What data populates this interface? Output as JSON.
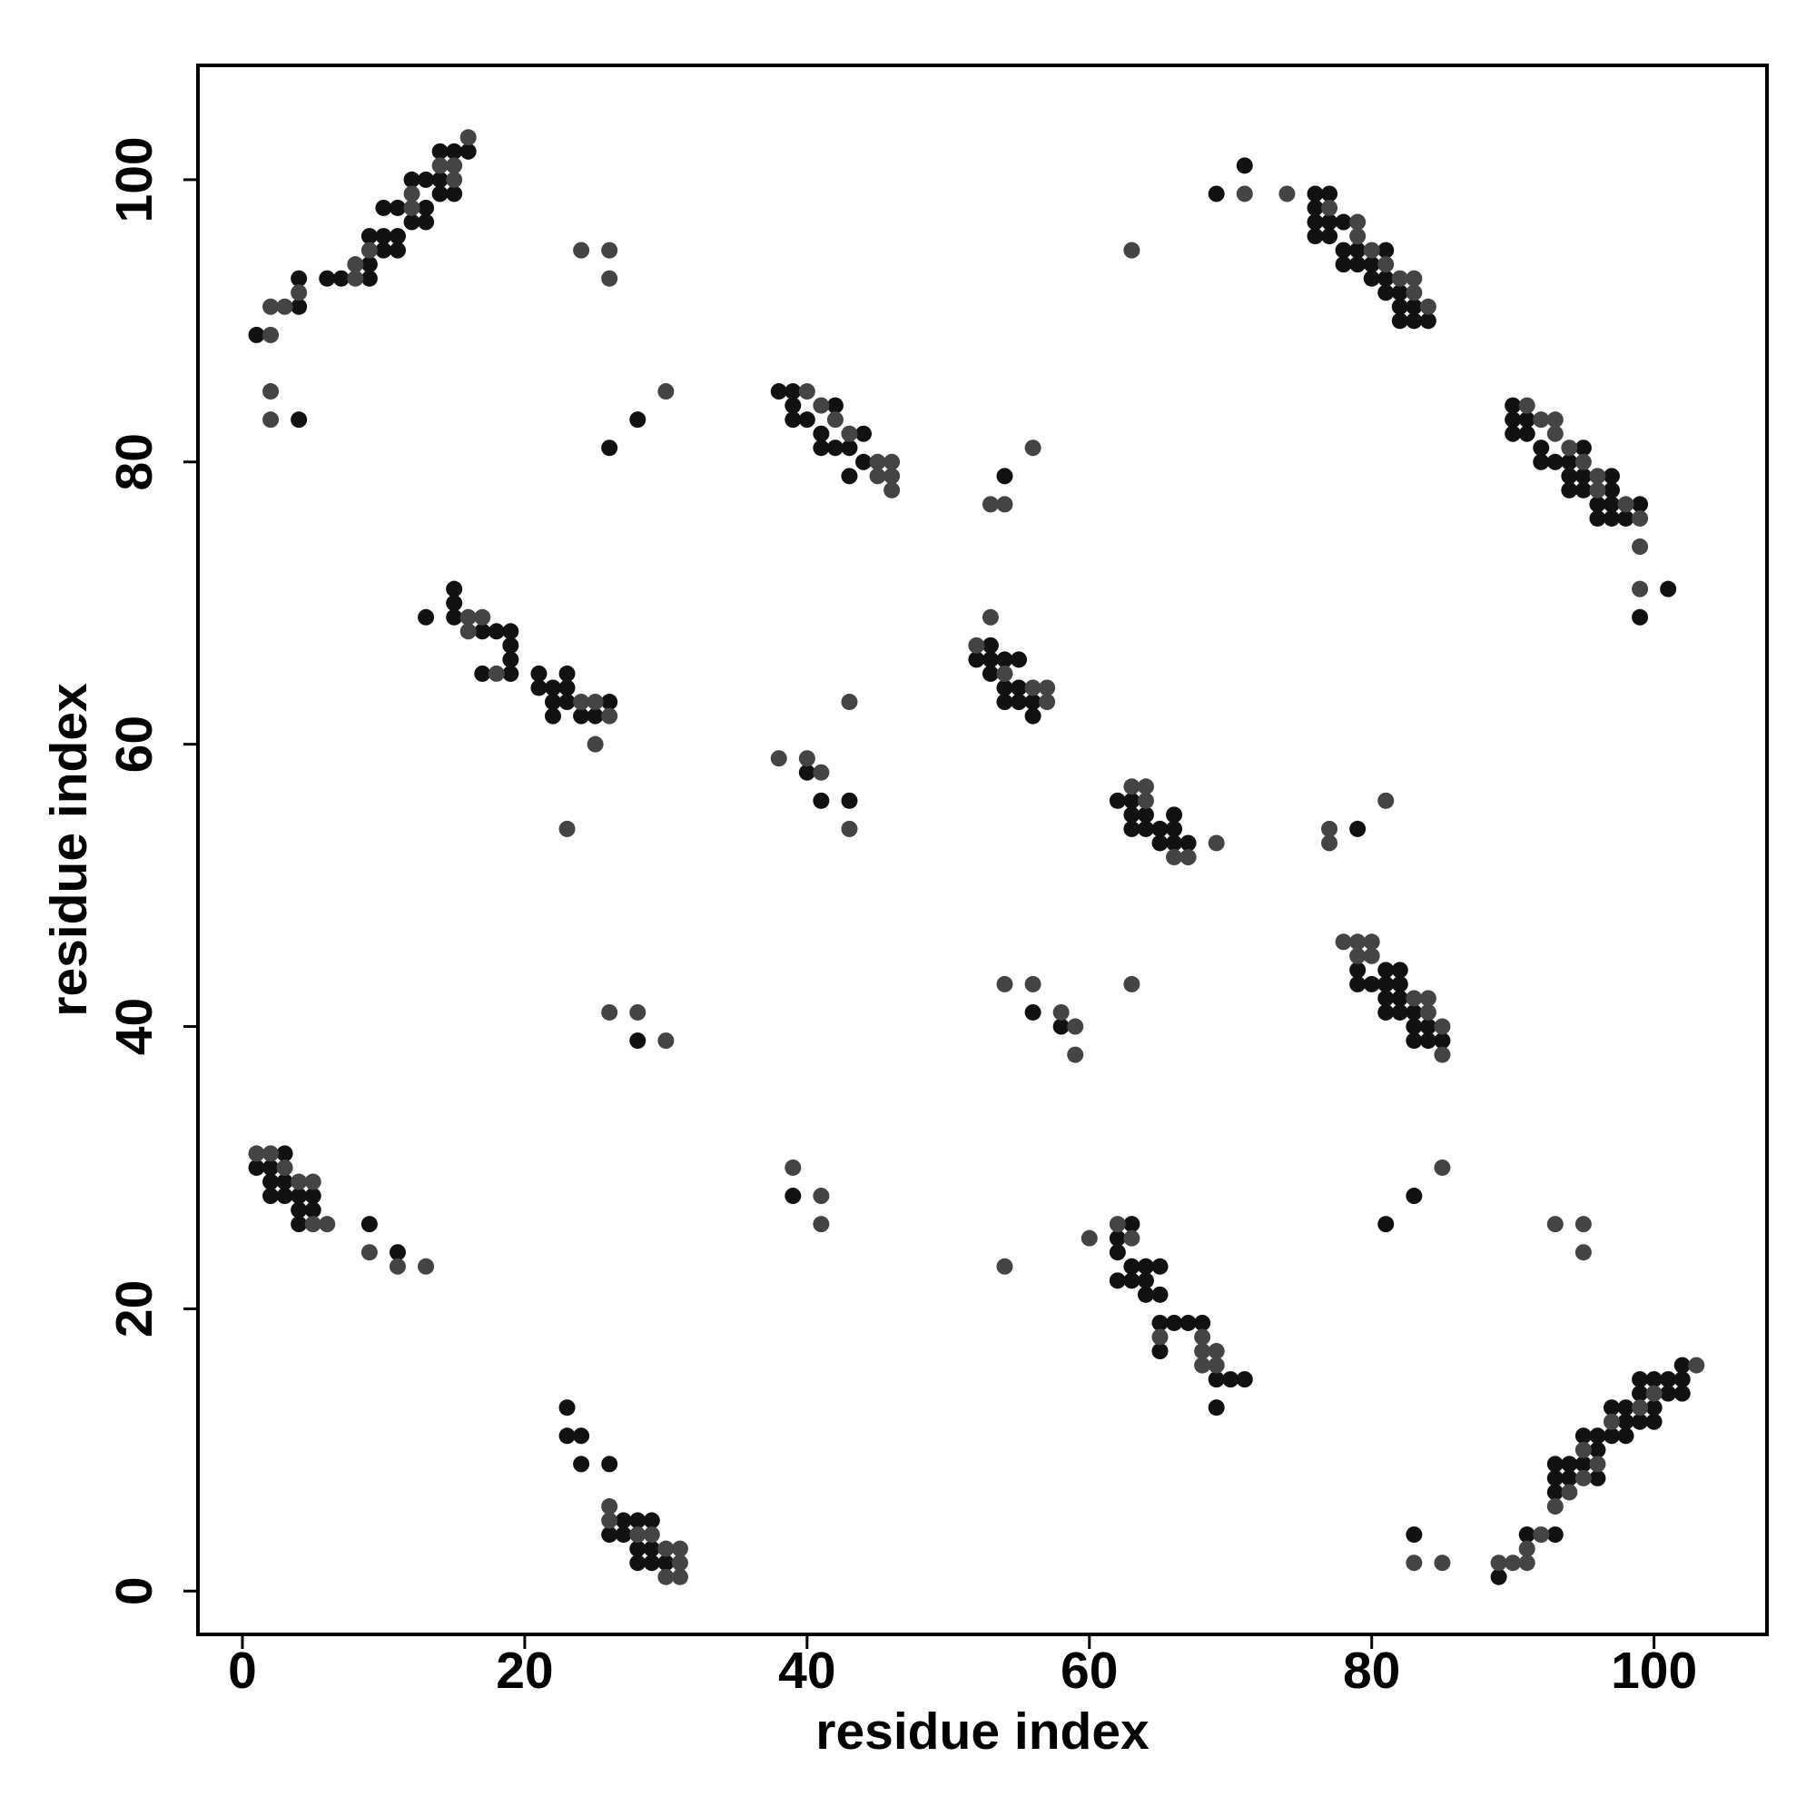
{
  "chart_data": {
    "type": "scatter",
    "xlabel": "residue index",
    "ylabel": "residue index",
    "xlim": [
      -3.15,
      108
    ],
    "ylim": [
      -3.07,
      108.1
    ],
    "xticks": [
      0,
      20,
      40,
      60,
      80,
      100
    ],
    "yticks": [
      0,
      20,
      40,
      60,
      80,
      100
    ],
    "series": [
      {
        "color": "#111111",
        "x": [
          1,
          4,
          4,
          4,
          6,
          7,
          9,
          9,
          9,
          10,
          10,
          10,
          11,
          11,
          11,
          12,
          12,
          13,
          13,
          13,
          14,
          14,
          14,
          15,
          15,
          16,
          26,
          28,
          38,
          39,
          39,
          39,
          40,
          41,
          41,
          42,
          42,
          43,
          43,
          44,
          44,
          54,
          69,
          71,
          76,
          76,
          76,
          76,
          77,
          77,
          77,
          78,
          78,
          78,
          79,
          79,
          80,
          80,
          81,
          81,
          81,
          82,
          82,
          82,
          83,
          83,
          84,
          90,
          90,
          90,
          91,
          91,
          92,
          92,
          93,
          94,
          94,
          94,
          95,
          95,
          95,
          96,
          96,
          97,
          97,
          97,
          97,
          98,
          99,
          99,
          101,
          13,
          15,
          15,
          15,
          17,
          17,
          18,
          19,
          19,
          19,
          19,
          21,
          21,
          22,
          22,
          22,
          23,
          23,
          23,
          24,
          25,
          26,
          52,
          53,
          53,
          53,
          54,
          54,
          54,
          55,
          55,
          55,
          56,
          56,
          40,
          41,
          43,
          62,
          63,
          63,
          63,
          64,
          64,
          65,
          65,
          66,
          66,
          66,
          67,
          79,
          79,
          79,
          80,
          81,
          81,
          81,
          81,
          82,
          82,
          82,
          82,
          83,
          83,
          83,
          84,
          84,
          85,
          56,
          58,
          28,
          1,
          2,
          2,
          2,
          3,
          3,
          3,
          4,
          4,
          4,
          5,
          5,
          9,
          11,
          39,
          62,
          62,
          62,
          63,
          63,
          63,
          64,
          64,
          64,
          65,
          65,
          65,
          65,
          66,
          67,
          68,
          69,
          69,
          70,
          71,
          81,
          83,
          23,
          23,
          24,
          24,
          26,
          26,
          27,
          27,
          28,
          28,
          28,
          29,
          29,
          29,
          30,
          83,
          89,
          91,
          93,
          93,
          93,
          93,
          94,
          94,
          95,
          95,
          96,
          96,
          96,
          97,
          97,
          98,
          98,
          98,
          99,
          99,
          99,
          100,
          100,
          100,
          101,
          101,
          102,
          102,
          102
        ],
        "y": [
          89,
          91,
          93,
          83,
          93,
          93,
          93,
          94,
          96,
          95,
          96,
          98,
          95,
          96,
          98,
          97,
          100,
          97,
          98,
          100,
          99,
          100,
          102,
          99,
          102,
          102,
          81,
          83,
          85,
          85,
          84,
          83,
          83,
          82,
          81,
          84,
          81,
          81,
          79,
          82,
          80,
          79,
          99,
          101,
          99,
          98,
          97,
          96,
          99,
          97,
          96,
          97,
          95,
          94,
          95,
          94,
          94,
          93,
          95,
          93,
          92,
          92,
          91,
          90,
          91,
          90,
          90,
          84,
          83,
          82,
          83,
          82,
          81,
          80,
          80,
          80,
          79,
          78,
          81,
          79,
          78,
          77,
          76,
          79,
          78,
          77,
          76,
          76,
          77,
          69,
          71,
          69,
          71,
          70,
          69,
          68,
          65,
          68,
          68,
          67,
          66,
          65,
          65,
          64,
          64,
          63,
          62,
          65,
          64,
          63,
          62,
          62,
          63,
          66,
          67,
          66,
          65,
          66,
          64,
          63,
          66,
          64,
          63,
          63,
          62,
          58,
          56,
          56,
          56,
          56,
          55,
          54,
          55,
          54,
          54,
          53,
          55,
          54,
          53,
          53,
          54,
          44,
          43,
          43,
          44,
          43,
          42,
          41,
          44,
          43,
          42,
          41,
          41,
          40,
          39,
          40,
          39,
          39,
          41,
          40,
          39,
          30,
          30,
          29,
          28,
          31,
          29,
          28,
          28,
          27,
          26,
          28,
          27,
          26,
          24,
          28,
          25,
          24,
          22,
          26,
          23,
          22,
          23,
          22,
          21,
          23,
          21,
          19,
          17,
          19,
          19,
          19,
          15,
          13,
          15,
          15,
          26,
          28,
          13,
          11,
          11,
          9,
          9,
          4,
          5,
          4,
          5,
          3,
          2,
          5,
          3,
          2,
          2,
          4,
          1,
          4,
          4,
          7,
          8,
          9,
          9,
          8,
          11,
          9,
          11,
          10,
          8,
          13,
          11,
          13,
          12,
          11,
          15,
          14,
          12,
          15,
          13,
          12,
          15,
          14,
          16,
          15,
          14
        ]
      },
      {
        "color": "#444444",
        "x": [
          2,
          2,
          3,
          4,
          2,
          2,
          8,
          8,
          9,
          12,
          12,
          14,
          15,
          15,
          16,
          24,
          26,
          26,
          30,
          40,
          41,
          42,
          43,
          45,
          45,
          46,
          46,
          46,
          53,
          54,
          56,
          63,
          71,
          74,
          77,
          79,
          79,
          80,
          81,
          82,
          83,
          83,
          84,
          91,
          92,
          93,
          93,
          94,
          95,
          96,
          96,
          98,
          99,
          99,
          99,
          16,
          16,
          17,
          18,
          24,
          25,
          26,
          25,
          23,
          52,
          53,
          54,
          56,
          57,
          57,
          43,
          38,
          40,
          41,
          43,
          63,
          64,
          64,
          66,
          67,
          69,
          77,
          77,
          81,
          78,
          79,
          79,
          80,
          80,
          83,
          84,
          84,
          85,
          85,
          54,
          56,
          58,
          59,
          59,
          63,
          26,
          28,
          30,
          1,
          2,
          3,
          4,
          5,
          5,
          6,
          9,
          11,
          13,
          39,
          41,
          41,
          60,
          62,
          63,
          65,
          68,
          68,
          68,
          69,
          69,
          54,
          85,
          93,
          95,
          95,
          26,
          26,
          28,
          29,
          30,
          30,
          31,
          31,
          31,
          83,
          85,
          89,
          90,
          91,
          91,
          92,
          93,
          94,
          95,
          95,
          96,
          97,
          99,
          100,
          103
        ],
        "y": [
          89,
          91,
          91,
          92,
          85,
          83,
          93,
          94,
          95,
          98,
          99,
          101,
          100,
          101,
          103,
          95,
          95,
          93,
          85,
          85,
          84,
          83,
          82,
          80,
          79,
          80,
          79,
          78,
          77,
          77,
          81,
          95,
          99,
          99,
          98,
          97,
          96,
          95,
          94,
          93,
          93,
          92,
          91,
          84,
          83,
          83,
          82,
          81,
          80,
          79,
          78,
          77,
          76,
          74,
          71,
          69,
          68,
          69,
          65,
          63,
          63,
          62,
          60,
          54,
          67,
          69,
          65,
          64,
          64,
          63,
          63,
          59,
          59,
          58,
          54,
          57,
          57,
          56,
          52,
          52,
          53,
          54,
          53,
          56,
          46,
          46,
          45,
          46,
          45,
          42,
          42,
          41,
          40,
          38,
          43,
          43,
          41,
          40,
          38,
          43,
          41,
          41,
          39,
          31,
          31,
          30,
          29,
          29,
          26,
          26,
          24,
          23,
          23,
          30,
          28,
          26,
          25,
          26,
          25,
          18,
          18,
          17,
          16,
          17,
          16,
          23,
          30,
          26,
          26,
          24,
          6,
          5,
          4,
          4,
          3,
          1,
          3,
          2,
          1,
          2,
          2,
          2,
          2,
          3,
          2,
          4,
          6,
          7,
          10,
          8,
          9,
          12,
          13,
          14,
          16
        ]
      }
    ]
  }
}
